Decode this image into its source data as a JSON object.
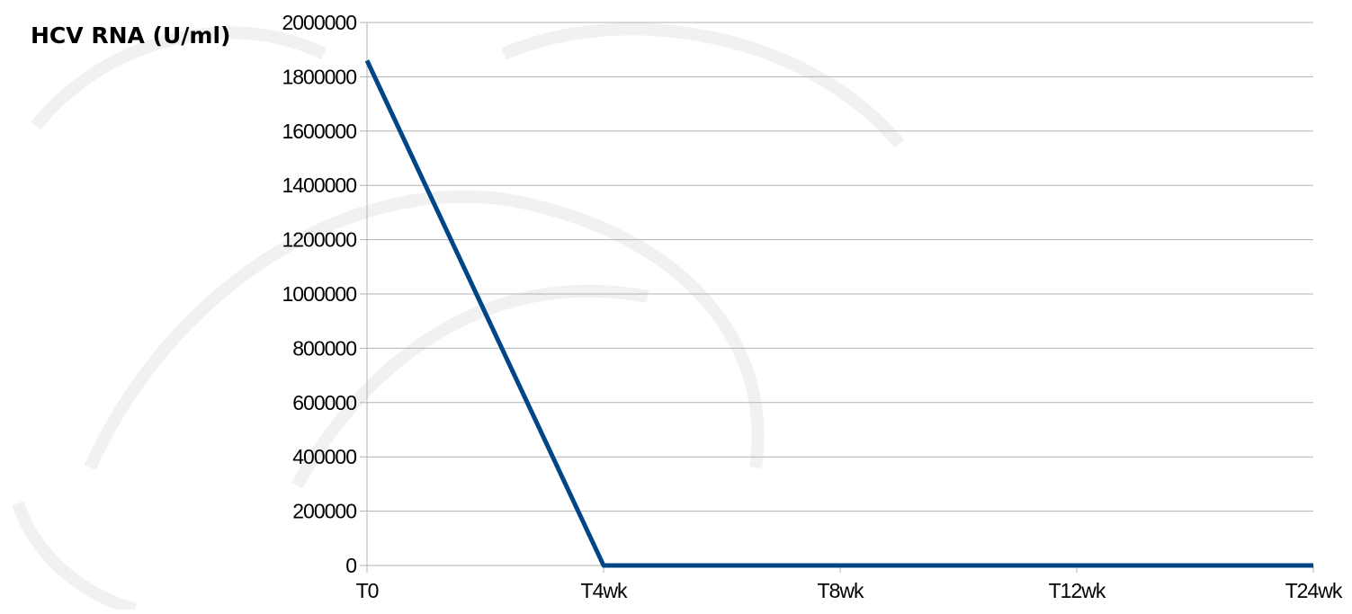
{
  "chart_data": {
    "type": "line",
    "title": "",
    "xlabel": "",
    "ylabel": "HCV RNA (U/ml)",
    "categories": [
      "T0",
      "T4wk",
      "T8wk",
      "T12wk",
      "T24wk"
    ],
    "series": [
      {
        "values": [
          1860000,
          0,
          0,
          0,
          0
        ],
        "color": "#004586"
      }
    ],
    "ylim": [
      0,
      2000000
    ],
    "yticks": [
      "0",
      "200000",
      "400000",
      "600000",
      "800000",
      "1000000",
      "1200000",
      "1400000",
      "1600000",
      "1800000",
      "2000000"
    ],
    "ytick_values": [
      0,
      200000,
      400000,
      600000,
      800000,
      1000000,
      1200000,
      1400000,
      1600000,
      1800000,
      2000000
    ],
    "grid": true,
    "legend": "none",
    "colors": {
      "line": "#004586",
      "grid": "#b3b3b3",
      "text": "#000000"
    }
  }
}
